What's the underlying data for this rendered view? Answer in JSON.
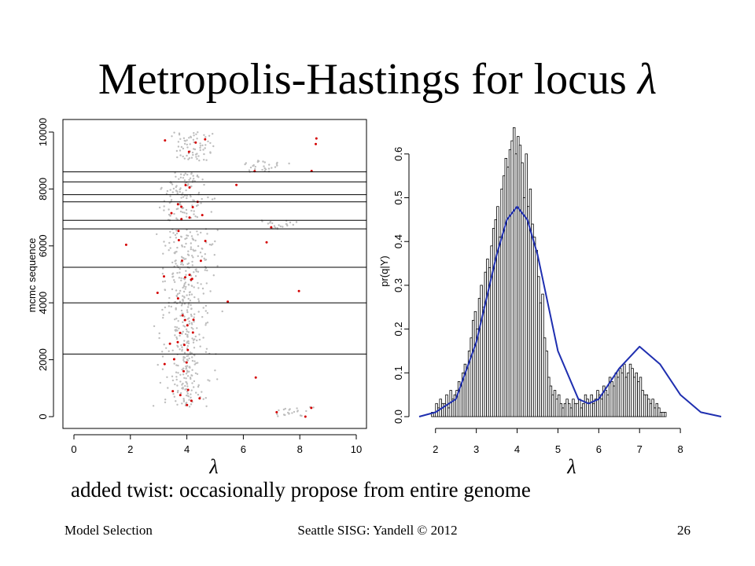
{
  "slide": {
    "title_text": "Metropolis-Hastings for locus",
    "title_symbol": "λ",
    "caption": "added twist: occasionally propose from entire genome",
    "footer_left": "Model Selection",
    "footer_center": "Seattle SISG: Yandell © 2012",
    "footer_right": "26"
  },
  "chart_data": [
    {
      "type": "scatter",
      "title": "",
      "xlabel": "λ",
      "ylabel": "mcmc sequence",
      "xlim": [
        0,
        10
      ],
      "ylim": [
        0,
        10000
      ],
      "x_ticks": [
        "0",
        "2",
        "4",
        "6",
        "8",
        "10"
      ],
      "y_ticks": [
        "0",
        "2000",
        "4000",
        "6000",
        "8000",
        "10000"
      ],
      "point_colors": {
        "proposals": "#bdbdbd",
        "accepted": "#d40000"
      },
      "trace_segments": [
        {
          "from_iter": 0,
          "to_iter": 350,
          "center": 7.7,
          "spread": 0.6
        },
        {
          "from_iter": 350,
          "to_iter": 2200,
          "center": 4.0,
          "spread": 0.6
        },
        {
          "from_iter": 2200,
          "to_iter": 4000,
          "center": 4.0,
          "spread": 0.65
        },
        {
          "from_iter": 4000,
          "to_iter": 5250,
          "center": 4.0,
          "spread": 0.65
        },
        {
          "from_iter": 5250,
          "to_iter": 6600,
          "center": 4.1,
          "spread": 0.7
        },
        {
          "from_iter": 6600,
          "to_iter": 6900,
          "center": 7.2,
          "spread": 0.5
        },
        {
          "from_iter": 6900,
          "to_iter": 7550,
          "center": 3.9,
          "spread": 0.6
        },
        {
          "from_iter": 7550,
          "to_iter": 7800,
          "center": 4.1,
          "spread": 0.6
        },
        {
          "from_iter": 7800,
          "to_iter": 8250,
          "center": 3.7,
          "spread": 0.5
        },
        {
          "from_iter": 8250,
          "to_iter": 8600,
          "center": 4.0,
          "spread": 0.5
        },
        {
          "from_iter": 8600,
          "to_iter": 9000,
          "center": 6.6,
          "spread": 0.6
        },
        {
          "from_iter": 9000,
          "to_iter": 10000,
          "center": 4.2,
          "spread": 0.6
        }
      ],
      "genome_jump_iters": [
        2200,
        4000,
        5250,
        6600,
        6900,
        7550,
        7800,
        8250,
        8600
      ]
    },
    {
      "type": "bar",
      "title": "",
      "xlabel": "λ",
      "ylabel": "pr(q|Y)",
      "xlim": [
        1.6,
        9.0
      ],
      "ylim": [
        0,
        0.65
      ],
      "x_ticks": [
        "2",
        "3",
        "4",
        "5",
        "6",
        "7",
        "8"
      ],
      "y_ticks": [
        "0.0",
        "0.1",
        "0.2",
        "0.3",
        "0.4",
        "0.5",
        "0.6"
      ],
      "bin_start": 1.9,
      "bin_width": 0.05,
      "values": [
        0.01,
        0.01,
        0.03,
        0.02,
        0.04,
        0.03,
        0.03,
        0.05,
        0.02,
        0.06,
        0.04,
        0.05,
        0.06,
        0.08,
        0.07,
        0.1,
        0.12,
        0.11,
        0.15,
        0.18,
        0.22,
        0.24,
        0.2,
        0.27,
        0.3,
        0.25,
        0.33,
        0.36,
        0.34,
        0.39,
        0.43,
        0.45,
        0.48,
        0.41,
        0.52,
        0.55,
        0.59,
        0.57,
        0.61,
        0.63,
        0.66,
        0.6,
        0.64,
        0.62,
        0.58,
        0.5,
        0.6,
        0.48,
        0.52,
        0.44,
        0.41,
        0.38,
        0.32,
        0.26,
        0.28,
        0.18,
        0.15,
        0.09,
        0.07,
        0.05,
        0.06,
        0.04,
        0.05,
        0.03,
        0.02,
        0.03,
        0.04,
        0.03,
        0.02,
        0.04,
        0.03,
        0.03,
        0.04,
        0.02,
        0.03,
        0.05,
        0.04,
        0.03,
        0.05,
        0.03,
        0.04,
        0.06,
        0.05,
        0.04,
        0.07,
        0.06,
        0.05,
        0.09,
        0.08,
        0.07,
        0.1,
        0.09,
        0.11,
        0.1,
        0.12,
        0.09,
        0.1,
        0.12,
        0.11,
        0.09,
        0.1,
        0.08,
        0.09,
        0.06,
        0.05,
        0.05,
        0.04,
        0.03,
        0.04,
        0.02,
        0.03,
        0.02,
        0.01,
        0.01,
        0.01,
        0.0,
        0.0
      ],
      "density_curve": {
        "name": "",
        "color": "#1f2fb0",
        "x": [
          1.6,
          2.0,
          2.5,
          3.0,
          3.5,
          3.75,
          4.0,
          4.25,
          4.5,
          5.0,
          5.5,
          5.75,
          6.0,
          6.5,
          7.0,
          7.5,
          8.0,
          8.5,
          9.0
        ],
        "y": [
          0.0,
          0.01,
          0.04,
          0.17,
          0.37,
          0.45,
          0.48,
          0.45,
          0.37,
          0.15,
          0.04,
          0.03,
          0.04,
          0.11,
          0.16,
          0.12,
          0.05,
          0.01,
          0.0
        ]
      }
    }
  ]
}
